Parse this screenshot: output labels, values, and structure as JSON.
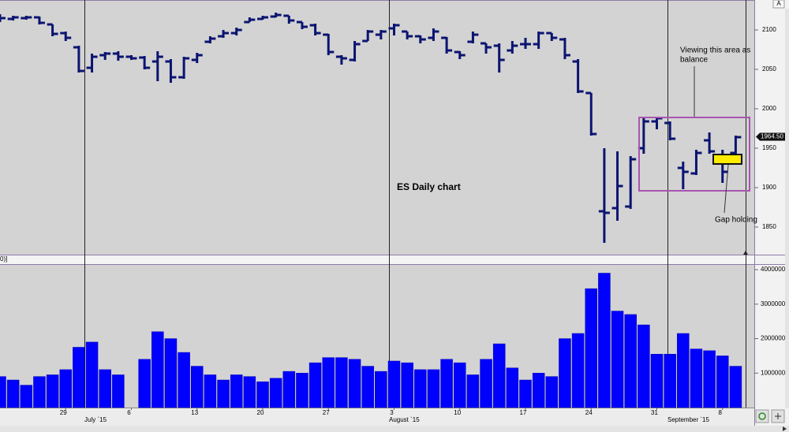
{
  "chart_data": [
    {
      "type": "ohlc",
      "categories": [
        null,
        null,
        null,
        null,
        null,
        "29",
        null,
        null,
        null,
        null,
        "6",
        null,
        null,
        null,
        null,
        "13",
        null,
        null,
        null,
        null,
        "20",
        null,
        null,
        null,
        null,
        "27",
        null,
        null,
        null,
        null,
        "3",
        null,
        null,
        null,
        null,
        "10",
        null,
        null,
        null,
        null,
        "17",
        null,
        null,
        null,
        null,
        "24",
        null,
        null,
        null,
        null,
        "31",
        null,
        null,
        null,
        null,
        "8",
        null
      ],
      "month_labels": [
        "July `15",
        "August `15",
        "September `15"
      ],
      "open": [
        2116,
        2114,
        2115,
        2116,
        2107,
        2096,
        2078,
        2052,
        2068,
        2070,
        2066,
        2065,
        2060,
        2060,
        2040,
        2062,
        2085,
        2092,
        2096,
        2110,
        2114,
        2117,
        2118,
        2110,
        2106,
        2094,
        2066,
        2062,
        2086,
        2094,
        2102,
        2098,
        2092,
        2090,
        2090,
        2072,
        2085,
        2083,
        2080,
        2074,
        2082,
        2082,
        2096,
        2088,
        2060,
        2020,
        1870,
        1874,
        1876,
        1950,
        1984,
        1982,
        1925,
        1918,
        1960,
        1940,
        1944
      ],
      "high": [
        2120,
        2118,
        2118,
        2117,
        2107,
        2098,
        2080,
        2070,
        2072,
        2073,
        2068,
        2067,
        2073,
        2063,
        2066,
        2071,
        2092,
        2100,
        2103,
        2116,
        2118,
        2122,
        2118,
        2110,
        2108,
        2095,
        2068,
        2086,
        2100,
        2100,
        2108,
        2098,
        2093,
        2102,
        2091,
        2073,
        2098,
        2083,
        2083,
        2086,
        2090,
        2098,
        2096,
        2090,
        2063,
        2020,
        1950,
        1946,
        1940,
        1988,
        1990,
        1984,
        1933,
        1948,
        1970,
        1948,
        1966
      ],
      "low": [
        2110,
        2112,
        2113,
        2107,
        2092,
        2086,
        2046,
        2046,
        2062,
        2061,
        2062,
        2050,
        2035,
        2033,
        2038,
        2058,
        2083,
        2090,
        2093,
        2110,
        2113,
        2116,
        2108,
        2101,
        2093,
        2068,
        2056,
        2060,
        2086,
        2088,
        2093,
        2088,
        2083,
        2086,
        2070,
        2063,
        2083,
        2070,
        2046,
        2070,
        2076,
        2076,
        2086,
        2063,
        2020,
        1966,
        1830,
        1858,
        1873,
        1943,
        1974,
        1960,
        1898,
        1916,
        1943,
        1906,
        1943
      ],
      "close": [
        2115,
        2116,
        2116,
        2109,
        2095,
        2090,
        2048,
        2066,
        2070,
        2066,
        2064,
        2052,
        2066,
        2040,
        2064,
        2068,
        2089,
        2096,
        2100,
        2113,
        2116,
        2119,
        2112,
        2104,
        2096,
        2072,
        2064,
        2082,
        2098,
        2098,
        2106,
        2092,
        2088,
        2098,
        2074,
        2068,
        2094,
        2078,
        2062,
        2080,
        2082,
        2096,
        2090,
        2068,
        2022,
        1968,
        1868,
        1902,
        1936,
        1984,
        1988,
        1962,
        1920,
        1944,
        1946,
        1920,
        1964
      ],
      "color": "#0b1470",
      "ylim": [
        1815,
        2138
      ],
      "yticks": [
        1850,
        1900,
        1950,
        2000,
        2050,
        2100
      ],
      "last_price": {
        "value": 1964.5,
        "label": "1964.50"
      },
      "annotations": [
        "ES Daily chart",
        "Viewing this area as",
        "balance",
        "Gap holding"
      ],
      "scale_button": "A"
    },
    {
      "type": "bar",
      "indicator_label": "0)]",
      "values": [
        900000,
        800000,
        650000,
        900000,
        950000,
        1100000,
        1750000,
        1900000,
        1100000,
        950000,
        null,
        1400000,
        2200000,
        2000000,
        1600000,
        1200000,
        950000,
        800000,
        950000,
        900000,
        750000,
        850000,
        1050000,
        1000000,
        1300000,
        1450000,
        1450000,
        1400000,
        1200000,
        1050000,
        1350000,
        1300000,
        1100000,
        1100000,
        1400000,
        1300000,
        950000,
        1400000,
        1850000,
        1150000,
        800000,
        1000000,
        900000,
        2000000,
        2150000,
        3450000,
        3900000,
        2800000,
        2700000,
        2400000,
        1550000,
        1550000,
        2150000,
        1700000,
        1650000,
        1500000,
        1200000
      ],
      "color": "#0000ff",
      "ylim": [
        0,
        4140000
      ],
      "yticks": [
        1000000,
        2000000,
        3000000,
        4000000
      ]
    }
  ]
}
